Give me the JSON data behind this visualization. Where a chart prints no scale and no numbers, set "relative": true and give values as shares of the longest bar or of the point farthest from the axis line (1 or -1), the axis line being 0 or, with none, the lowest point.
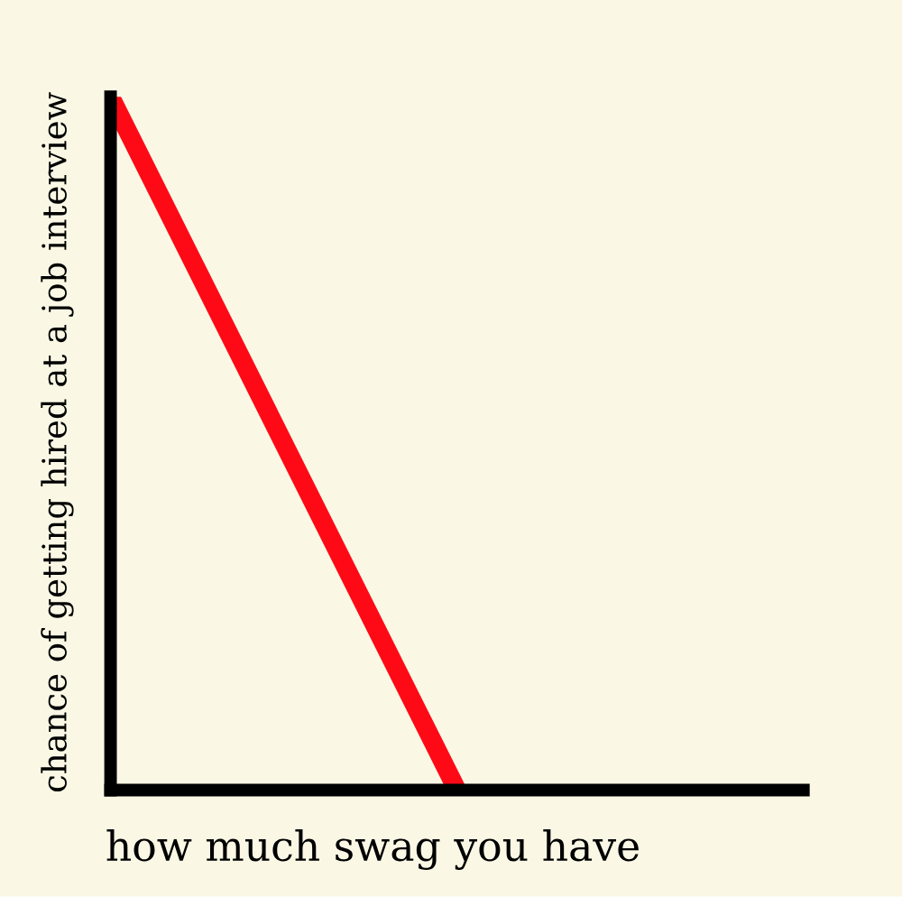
{
  "chart_data": {
    "type": "line",
    "xlabel": "how much swag you have",
    "ylabel": "chance of getting hired at a job interview",
    "categories": [
      null,
      null,
      null
    ],
    "series": [
      {
        "color": "#fe0a16",
        "values": [
          1,
          0,
          null
        ]
      }
    ],
    "relative": true
  }
}
